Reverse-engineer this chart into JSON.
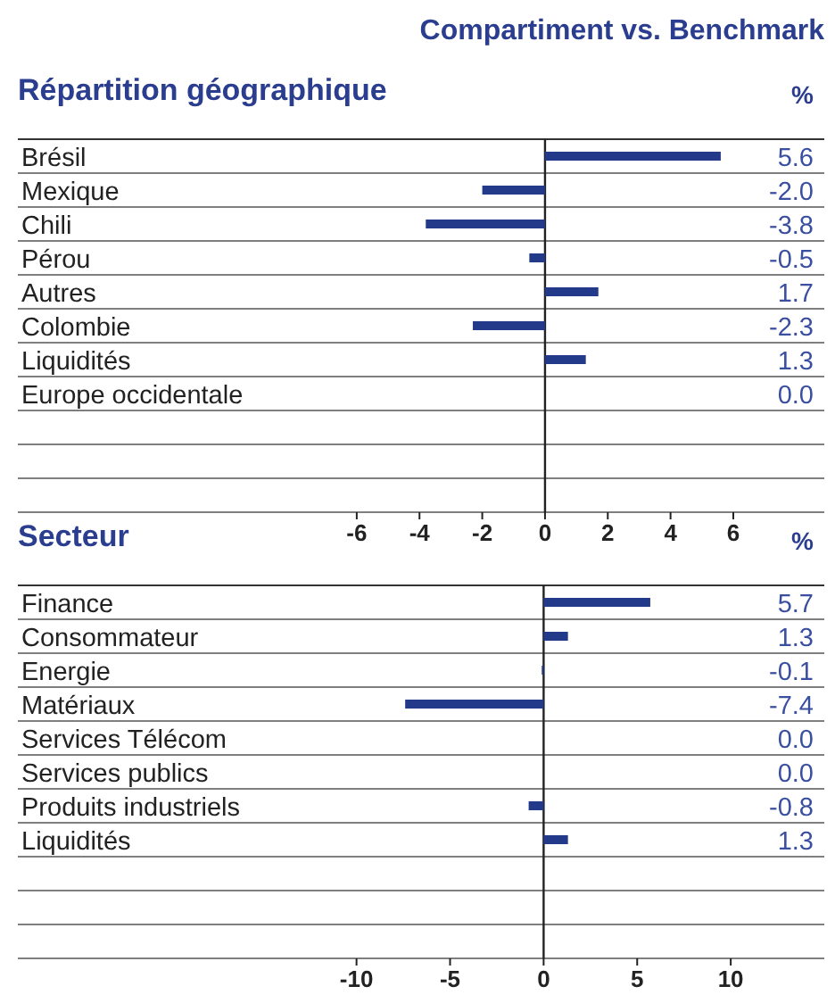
{
  "chart_data": [
    {
      "type": "bar",
      "orientation": "horizontal",
      "title": "Répartition géographique",
      "subtitle": "Compartiment vs. Benchmark",
      "annotations": [
        "%"
      ],
      "grid": "y",
      "categories": [
        "Brésil",
        "Mexique",
        "Chili",
        "Pérou",
        "Autres",
        "Colombie",
        "Liquidités",
        "Europe occidentale",
        null,
        null,
        null
      ],
      "values": [
        5.6,
        -2.0,
        -3.8,
        -0.5,
        1.7,
        -2.3,
        1.3,
        0.0,
        null,
        null,
        null
      ],
      "value_labels": [
        "5.6",
        "-2.0",
        "-3.8",
        "-0.5",
        "1.7",
        "-2.3",
        "1.3",
        "0.0",
        null,
        null,
        null
      ],
      "color": "#233a8b",
      "xlim": [
        -16.8,
        8.9
      ],
      "xticks": [
        -6,
        -4,
        -2,
        0,
        2,
        4,
        6
      ]
    },
    {
      "type": "bar",
      "orientation": "horizontal",
      "title": "Secteur",
      "annotations": [
        "%"
      ],
      "grid": "y",
      "categories": [
        "Finance",
        "Consommateur",
        "Energie",
        "Matériaux",
        "Services Télécom",
        "Services publics",
        "Produits industriels",
        "Liquidités",
        null,
        null,
        null
      ],
      "values": [
        5.7,
        1.3,
        -0.1,
        -7.4,
        0.0,
        0.0,
        -0.8,
        1.3,
        null,
        null,
        null
      ],
      "value_labels": [
        "5.7",
        "1.3",
        "-0.1",
        "-7.4",
        "0.0",
        "0.0",
        "-0.8",
        "1.3",
        null,
        null,
        null
      ],
      "color": "#233a8b",
      "xlim": [
        -28.1,
        15.0
      ],
      "xticks": [
        -10,
        -5,
        0,
        5,
        10
      ]
    }
  ]
}
